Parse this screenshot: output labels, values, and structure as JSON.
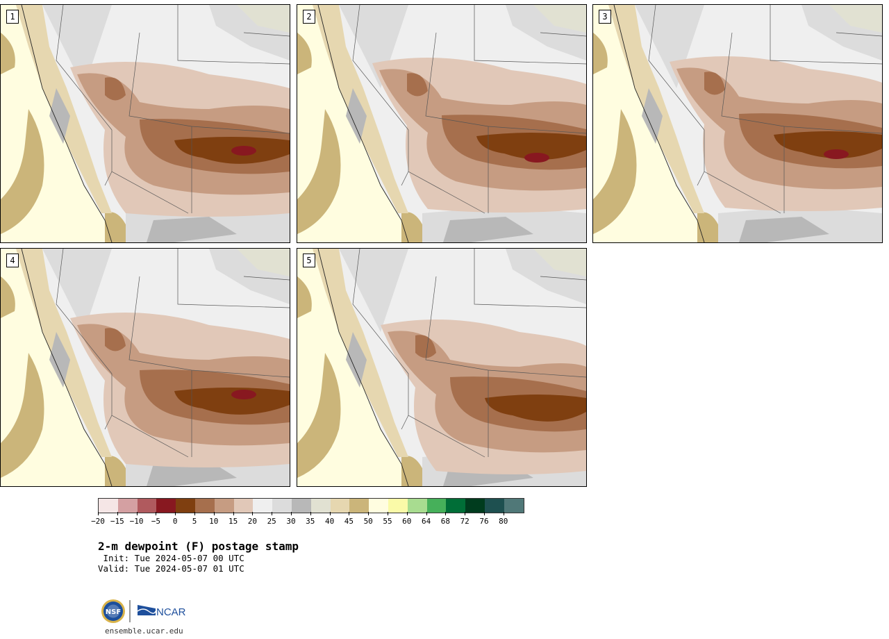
{
  "panels": [
    {
      "label": "1"
    },
    {
      "label": "2"
    },
    {
      "label": "3"
    },
    {
      "label": "4"
    },
    {
      "label": "5"
    }
  ],
  "colorbar": {
    "colors": [
      "#f5e6e6",
      "#d4a0a2",
      "#b05a5e",
      "#881820",
      "#7f3f10",
      "#a66f4d",
      "#c69c82",
      "#e1c8b8",
      "#efefef",
      "#dcdcdc",
      "#b8b8b8",
      "#e1e1d2",
      "#e6d7b0",
      "#cbb57a",
      "#fffde0",
      "#fafaa8",
      "#a8dc90",
      "#46b05a",
      "#006e37",
      "#003c1e",
      "#1e5050",
      "#507878"
    ],
    "ticks": [
      "−20",
      "−15",
      "−10",
      "−5",
      "0",
      "5",
      "10",
      "15",
      "20",
      "25",
      "30",
      "35",
      "40",
      "45",
      "50",
      "55",
      "60",
      "64",
      "68",
      "72",
      "76",
      "80"
    ]
  },
  "title": "2-m dewpoint (F) postage stamp",
  "init_line": " Init: Tue 2024-05-07 00 UTC",
  "valid_line": "Valid: Tue 2024-05-07 01 UTC",
  "logos": {
    "nsf": "NSF",
    "ncar": "NCAR"
  },
  "url": "ensemble.ucar.edu",
  "colors": {
    "ocean": "#fffde0",
    "dry_ocean_offshore": "#cbb57a",
    "coastal_tan": "#e6d7b0",
    "gray_light": "#efefef",
    "gray_mid": "#dcdcdc",
    "gray_dark": "#b8b8b8",
    "brown_light": "#e1c8b8",
    "brown_mid": "#c69c82",
    "brown_dark": "#a66f4d",
    "brown_deep": "#7f3f10",
    "maroon": "#881820"
  }
}
